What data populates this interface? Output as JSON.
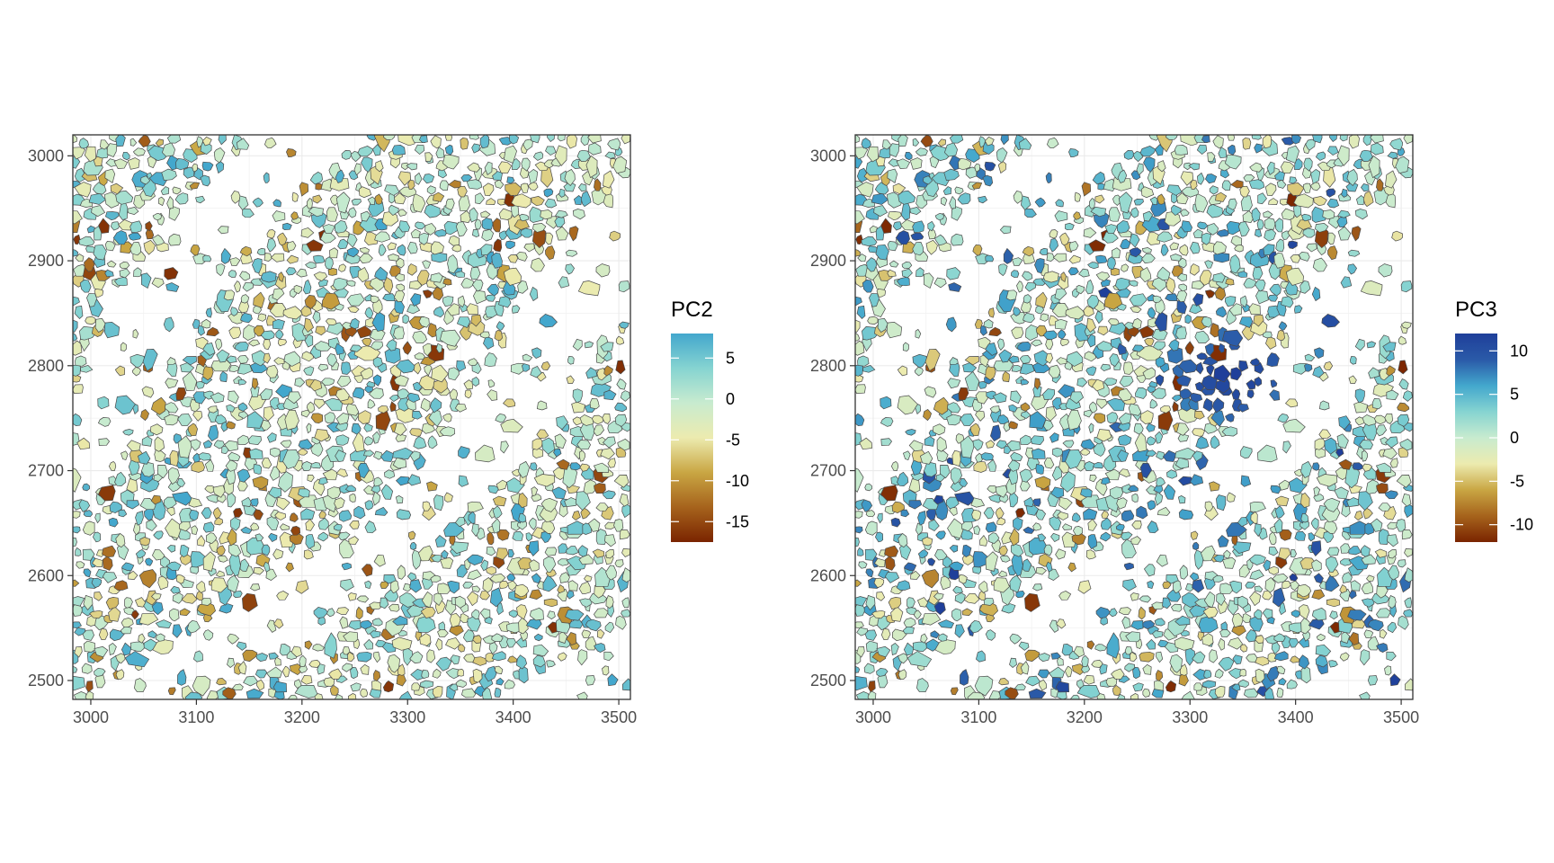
{
  "chart_data": [
    {
      "type": "spatial-polygon-map",
      "title": "",
      "xlabel": "",
      "ylabel": "",
      "fill_variable": "PC2",
      "x_ticks": [
        3000,
        3100,
        3200,
        3300,
        3400,
        3500
      ],
      "y_ticks": [
        2500,
        2600,
        2700,
        2800,
        2900,
        3000
      ],
      "xlim": [
        2983,
        3511
      ],
      "ylim": [
        2482,
        3020
      ],
      "grid": true,
      "legend": {
        "title": "PC2",
        "placement": "right",
        "range": [
          -17.5,
          8
        ],
        "ticks": [
          5,
          0,
          -5,
          -10,
          -15
        ],
        "tick_labels": [
          "5",
          "0",
          "-5",
          "-10",
          "-15"
        ],
        "colors": [
          "#7a2400",
          "#a6631c",
          "#c9a643",
          "#ecebaf",
          "#c8ebcf",
          "#86d4d1",
          "#43a7cd"
        ]
      },
      "cell_value_distribution": {
        "mean": -1,
        "sd": 4,
        "min": -17.5,
        "max": 8
      }
    },
    {
      "type": "spatial-polygon-map",
      "title": "",
      "xlabel": "",
      "ylabel": "",
      "fill_variable": "PC3",
      "x_ticks": [
        3000,
        3100,
        3200,
        3300,
        3400,
        3500
      ],
      "y_ticks": [
        2500,
        2600,
        2700,
        2800,
        2900,
        3000
      ],
      "xlim": [
        2983,
        3511
      ],
      "ylim": [
        2482,
        3020
      ],
      "grid": true,
      "legend": {
        "title": "PC3",
        "placement": "right",
        "range": [
          -12,
          12
        ],
        "ticks": [
          10,
          5,
          0,
          -5,
          -10
        ],
        "tick_labels": [
          "10",
          "5",
          "0",
          "-5",
          "-10"
        ],
        "colors": [
          "#7a2400",
          "#a6631c",
          "#c9a643",
          "#ecebaf",
          "#c8ebcf",
          "#86d4d1",
          "#43a7cd",
          "#2a5aa8",
          "#1f3f9a"
        ]
      },
      "cell_value_distribution": {
        "mean": 1.5,
        "sd": 3.5,
        "min": -12,
        "max": 12
      },
      "hotspot_high_values": {
        "x": 3340,
        "y": 2790
      }
    }
  ]
}
